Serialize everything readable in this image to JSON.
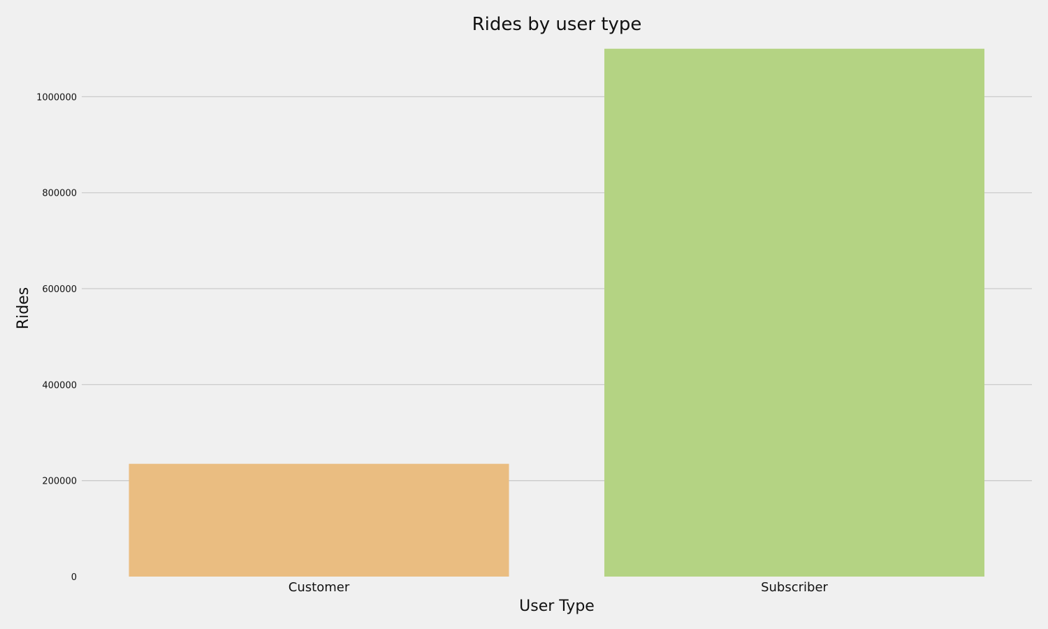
{
  "chart_data": {
    "type": "bar",
    "title": "Rides by user type",
    "xlabel": "User Type",
    "ylabel": "Rides",
    "categories": [
      "Customer",
      "Subscriber"
    ],
    "values": [
      235000,
      1100000
    ],
    "bar_colors": [
      "#eabd81",
      "#b4d383"
    ],
    "ylim": [
      0,
      1120000
    ],
    "yticks": [
      0,
      200000,
      400000,
      600000,
      800000,
      1000000
    ],
    "ytick_labels": [
      "0",
      "200000",
      "400000",
      "600000",
      "800000",
      "1000000"
    ],
    "grid": "horizontal",
    "background_color": "#f0f0f0",
    "grid_color": "#cbcbcb"
  }
}
